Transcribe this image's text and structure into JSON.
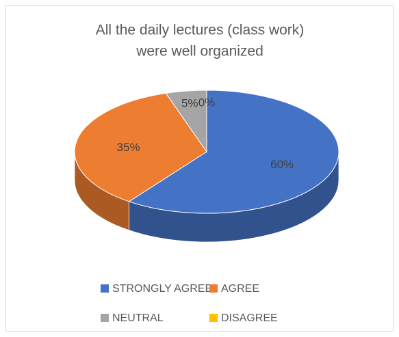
{
  "chart_data": {
    "type": "pie3d",
    "title": [
      "All the daily lectures (class work)",
      "were well organized"
    ],
    "categories": [
      "STRONGLY AGREE",
      "AGREE",
      "NEUTRAL",
      "DISAGREE"
    ],
    "values": [
      60,
      35,
      5,
      0
    ],
    "value_labels": [
      "60%",
      "35%",
      "5%",
      "0%"
    ],
    "colors": [
      "#4472c4",
      "#ed7d31",
      "#a5a5a5",
      "#ffc000"
    ],
    "legend": "bottom"
  }
}
